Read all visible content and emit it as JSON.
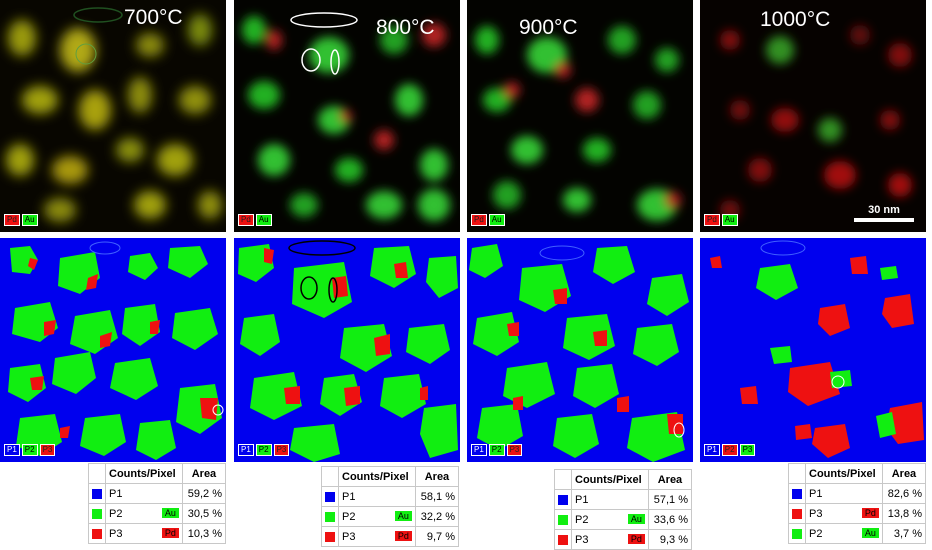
{
  "colors": {
    "red": "#ee1111",
    "green": "#11ee11",
    "blue": "#0000ee"
  },
  "top_row": [
    {
      "temperature": "700°C",
      "legend": [
        "Pd",
        "Au"
      ]
    },
    {
      "temperature": "800°C",
      "legend": [
        "Pd",
        "Au"
      ]
    },
    {
      "temperature": "900°C",
      "legend": [
        "Pd",
        "Au"
      ]
    },
    {
      "temperature": "1000°C",
      "legend": [
        "Pd",
        "Au"
      ],
      "scale_bar": "30 nm"
    }
  ],
  "bottom_row_legends": [
    [
      "P1",
      "P2",
      "P3"
    ],
    [
      "P1",
      "P2",
      "P3"
    ],
    [
      "P1",
      "P2",
      "P3"
    ],
    [
      "P1",
      "P2",
      "P3"
    ]
  ],
  "tables": [
    {
      "header": {
        "counts": "Counts/Pixel",
        "area": "Area"
      },
      "rows": [
        {
          "phase": "P1",
          "swatch": "blue",
          "element": "",
          "area": "59,2 %"
        },
        {
          "phase": "P2",
          "swatch": "green",
          "element": "Au",
          "area": "30,5 %"
        },
        {
          "phase": "P3",
          "swatch": "red",
          "element": "Pd",
          "area": "10,3 %"
        }
      ]
    },
    {
      "header": {
        "counts": "Counts/Pixel",
        "area": "Area"
      },
      "rows": [
        {
          "phase": "P1",
          "swatch": "blue",
          "element": "",
          "area": "58,1 %"
        },
        {
          "phase": "P2",
          "swatch": "green",
          "element": "Au",
          "area": "32,2 %"
        },
        {
          "phase": "P3",
          "swatch": "red",
          "element": "Pd",
          "area": "9,7 %"
        }
      ]
    },
    {
      "header": {
        "counts": "Counts/Pixel",
        "area": "Area"
      },
      "rows": [
        {
          "phase": "P1",
          "swatch": "blue",
          "element": "",
          "area": "57,1 %"
        },
        {
          "phase": "P2",
          "swatch": "green",
          "element": "Au",
          "area": "33,6 %"
        },
        {
          "phase": "P3",
          "swatch": "red",
          "element": "Pd",
          "area": "9,3 %"
        }
      ]
    },
    {
      "header": {
        "counts": "Counts/Pixel",
        "area": "Area"
      },
      "rows": [
        {
          "phase": "P1",
          "swatch": "blue",
          "element": "",
          "area": "82,6 %"
        },
        {
          "phase": "P3",
          "swatch": "red",
          "element": "Pd",
          "area": "13,8 %"
        },
        {
          "phase": "P2",
          "swatch": "green",
          "element": "Au",
          "area": "3,7 %"
        }
      ]
    }
  ]
}
